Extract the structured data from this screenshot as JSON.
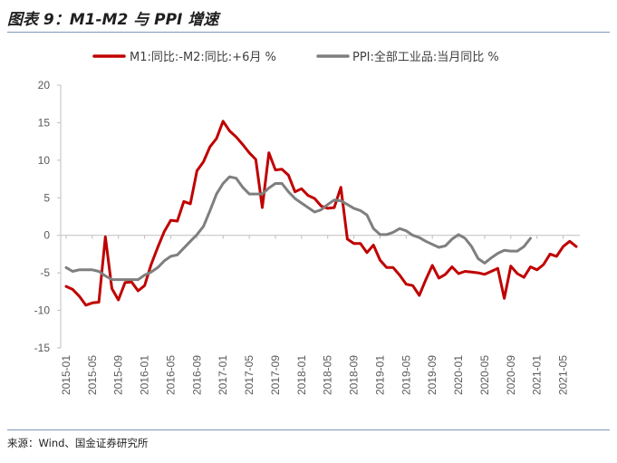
{
  "title": "图表 9：M1-M2 与 PPI 增速",
  "source": "来源：Wind、国金证券研究所",
  "chart_data": {
    "type": "line",
    "ylim": [
      -15,
      20
    ],
    "yticks": [
      -15,
      -10,
      -5,
      0,
      5,
      10,
      15,
      20
    ],
    "xtick_labels": [
      "2015-01",
      "2015-05",
      "2015-09",
      "2016-01",
      "2016-05",
      "2016-09",
      "2017-01",
      "2017-05",
      "2017-09",
      "2018-01",
      "2018-05",
      "2018-09",
      "2019-01",
      "2019-05",
      "2019-09",
      "2020-01",
      "2020-05",
      "2020-09",
      "2021-01",
      "2021-05"
    ],
    "x_range": [
      "2015-01",
      "2021-07"
    ],
    "legend_position": "top",
    "series": [
      {
        "name": "M1:同比:-M2:同比:+6月 %",
        "color": "#c00000",
        "x": [
          "2015-01",
          "2015-02",
          "2015-03",
          "2015-04",
          "2015-05",
          "2015-06",
          "2015-07",
          "2015-08",
          "2015-09",
          "2015-10",
          "2015-11",
          "2015-12",
          "2016-01",
          "2016-02",
          "2016-03",
          "2016-04",
          "2016-05",
          "2016-06",
          "2016-07",
          "2016-08",
          "2016-09",
          "2016-10",
          "2016-11",
          "2016-12",
          "2017-01",
          "2017-02",
          "2017-03",
          "2017-04",
          "2017-05",
          "2017-06",
          "2017-07",
          "2017-08",
          "2017-09",
          "2017-10",
          "2017-11",
          "2017-12",
          "2018-01",
          "2018-02",
          "2018-03",
          "2018-04",
          "2018-05",
          "2018-06",
          "2018-07",
          "2018-08",
          "2018-09",
          "2018-10",
          "2018-11",
          "2018-12",
          "2019-01",
          "2019-02",
          "2019-03",
          "2019-04",
          "2019-05",
          "2019-06",
          "2019-07",
          "2019-08",
          "2019-09",
          "2019-10",
          "2019-11",
          "2019-12",
          "2020-01",
          "2020-02",
          "2020-03",
          "2020-04",
          "2020-05",
          "2020-06",
          "2020-07",
          "2020-08",
          "2020-09",
          "2020-10",
          "2020-11",
          "2020-12",
          "2021-01",
          "2021-02",
          "2021-03",
          "2021-04",
          "2021-05",
          "2021-06",
          "2021-07"
        ],
        "values": [
          -6.8,
          -7.2,
          -8.1,
          -9.3,
          -9.0,
          -8.9,
          -0.2,
          -7.1,
          -8.6,
          -6.3,
          -6.2,
          -7.4,
          -6.7,
          -3.9,
          -1.6,
          0.5,
          2.0,
          1.9,
          4.5,
          4.2,
          8.6,
          9.8,
          11.8,
          12.9,
          15.2,
          13.9,
          13.1,
          12.1,
          11.0,
          10.1,
          3.7,
          11.0,
          8.7,
          8.8,
          8.0,
          5.8,
          6.2,
          5.3,
          4.9,
          3.9,
          3.6,
          3.7,
          6.4,
          -0.5,
          -1.1,
          -1.1,
          -2.3,
          -1.3,
          -3.3,
          -4.3,
          -4.3,
          -5.3,
          -6.5,
          -6.7,
          -8.0,
          -5.9,
          -4.0,
          -5.7,
          -5.2,
          -4.2,
          -5.1,
          -4.8,
          -4.9,
          -5.0,
          -5.2,
          -4.8,
          -4.4,
          -8.4,
          -4.1,
          -5.1,
          -5.6,
          -4.2,
          -4.6,
          -3.9,
          -2.5,
          -2.8,
          -1.5,
          -0.8,
          -1.5
        ]
      },
      {
        "name": "PPI:全部工业品:当月同比 %",
        "color": "#7f7f7f",
        "x": [
          "2015-01",
          "2015-02",
          "2015-03",
          "2015-04",
          "2015-05",
          "2015-06",
          "2015-07",
          "2015-08",
          "2015-09",
          "2015-10",
          "2015-11",
          "2015-12",
          "2016-01",
          "2016-02",
          "2016-03",
          "2016-04",
          "2016-05",
          "2016-06",
          "2016-07",
          "2016-08",
          "2016-09",
          "2016-10",
          "2016-11",
          "2016-12",
          "2017-01",
          "2017-02",
          "2017-03",
          "2017-04",
          "2017-05",
          "2017-06",
          "2017-07",
          "2017-08",
          "2017-09",
          "2017-10",
          "2017-11",
          "2017-12",
          "2018-01",
          "2018-02",
          "2018-03",
          "2018-04",
          "2018-05",
          "2018-06",
          "2018-07",
          "2018-08",
          "2018-09",
          "2018-10",
          "2018-11",
          "2018-12",
          "2019-01",
          "2019-02",
          "2019-03",
          "2019-04",
          "2019-05",
          "2019-06",
          "2019-07",
          "2019-08",
          "2019-09",
          "2019-10",
          "2019-11",
          "2019-12",
          "2020-01",
          "2020-02",
          "2020-03",
          "2020-04",
          "2020-05",
          "2020-06",
          "2020-07",
          "2020-08",
          "2020-09",
          "2020-10",
          "2020-11",
          "2020-12"
        ],
        "values": [
          -4.3,
          -4.8,
          -4.6,
          -4.6,
          -4.6,
          -4.8,
          -5.4,
          -5.9,
          -5.9,
          -5.9,
          -5.9,
          -5.9,
          -5.3,
          -4.9,
          -4.3,
          -3.4,
          -2.8,
          -2.6,
          -1.7,
          -0.8,
          0.1,
          1.2,
          3.3,
          5.5,
          6.9,
          7.8,
          7.6,
          6.4,
          5.5,
          5.5,
          5.5,
          6.3,
          6.9,
          6.9,
          5.8,
          4.9,
          4.3,
          3.7,
          3.1,
          3.4,
          4.1,
          4.7,
          4.6,
          4.1,
          3.6,
          3.3,
          2.7,
          0.9,
          0.1,
          0.1,
          0.4,
          0.9,
          0.6,
          0.0,
          -0.3,
          -0.8,
          -1.2,
          -1.6,
          -1.4,
          -0.5,
          0.1,
          -0.4,
          -1.5,
          -3.1,
          -3.7,
          -3.0,
          -2.4,
          -2.0,
          -2.1,
          -2.1,
          -1.5,
          -0.4
        ]
      }
    ]
  }
}
